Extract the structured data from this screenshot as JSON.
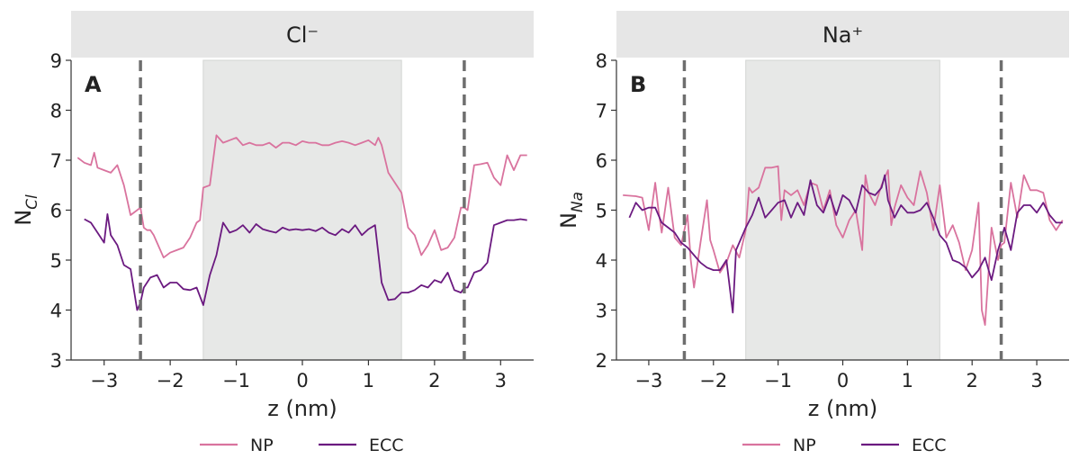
{
  "chart_data": [
    {
      "type": "line",
      "panel_label": "A",
      "title": "Cl⁻",
      "xlabel": "z (nm)",
      "ylabel_main": "N",
      "ylabel_sub": "Cl",
      "xlim": [
        -3.5,
        3.5
      ],
      "ylim": [
        3,
        9
      ],
      "xticks": [
        -3,
        -2,
        -1,
        0,
        1,
        2,
        3
      ],
      "yticks": [
        3,
        4,
        5,
        6,
        7,
        8,
        9
      ],
      "shaded_region": [
        -1.5,
        1.5
      ],
      "dashed_lines": [
        -2.45,
        2.45
      ],
      "series": [
        {
          "name": "NP",
          "color": "#d9739e",
          "x": [
            -3.4,
            -3.3,
            -3.2,
            -3.15,
            -3.1,
            -3.0,
            -2.9,
            -2.8,
            -2.7,
            -2.6,
            -2.5,
            -2.45,
            -2.4,
            -2.35,
            -2.3,
            -2.25,
            -2.2,
            -2.1,
            -2.0,
            -1.9,
            -1.8,
            -1.7,
            -1.6,
            -1.55,
            -1.5,
            -1.4,
            -1.3,
            -1.2,
            -1.1,
            -1.0,
            -0.9,
            -0.8,
            -0.7,
            -0.6,
            -0.5,
            -0.4,
            -0.3,
            -0.2,
            -0.1,
            0.0,
            0.1,
            0.2,
            0.3,
            0.4,
            0.5,
            0.6,
            0.7,
            0.8,
            0.9,
            1.0,
            1.1,
            1.15,
            1.2,
            1.3,
            1.4,
            1.5,
            1.6,
            1.7,
            1.8,
            1.9,
            2.0,
            2.1,
            2.2,
            2.3,
            2.4,
            2.45,
            2.5,
            2.6,
            2.7,
            2.8,
            2.9,
            3.0,
            3.1,
            3.2,
            3.3,
            3.4
          ],
          "values": [
            7.05,
            6.95,
            6.9,
            7.15,
            6.85,
            6.8,
            6.75,
            6.9,
            6.5,
            5.9,
            6.0,
            6.05,
            5.65,
            5.6,
            5.6,
            5.5,
            5.35,
            5.05,
            5.15,
            5.2,
            5.25,
            5.45,
            5.75,
            5.8,
            6.45,
            6.5,
            7.5,
            7.35,
            7.4,
            7.45,
            7.3,
            7.35,
            7.3,
            7.3,
            7.35,
            7.25,
            7.35,
            7.35,
            7.3,
            7.38,
            7.35,
            7.35,
            7.3,
            7.3,
            7.35,
            7.38,
            7.35,
            7.3,
            7.35,
            7.4,
            7.3,
            7.45,
            7.3,
            6.75,
            6.55,
            6.35,
            5.65,
            5.5,
            5.1,
            5.3,
            5.6,
            5.2,
            5.25,
            5.45,
            6.05,
            6.05,
            6.0,
            6.9,
            6.92,
            6.95,
            6.65,
            6.5,
            7.1,
            6.8,
            7.1,
            7.1
          ]
        },
        {
          "name": "ECC",
          "color": "#6b1a80",
          "x": [
            -3.3,
            -3.2,
            -3.1,
            -3.0,
            -2.95,
            -2.9,
            -2.8,
            -2.7,
            -2.6,
            -2.5,
            -2.45,
            -2.4,
            -2.3,
            -2.2,
            -2.1,
            -2.0,
            -1.9,
            -1.8,
            -1.7,
            -1.6,
            -1.5,
            -1.4,
            -1.3,
            -1.2,
            -1.1,
            -1.0,
            -0.9,
            -0.8,
            -0.7,
            -0.6,
            -0.5,
            -0.4,
            -0.3,
            -0.2,
            -0.1,
            0.0,
            0.1,
            0.2,
            0.3,
            0.4,
            0.5,
            0.6,
            0.7,
            0.8,
            0.9,
            1.0,
            1.1,
            1.2,
            1.3,
            1.4,
            1.5,
            1.6,
            1.7,
            1.8,
            1.9,
            2.0,
            2.1,
            2.2,
            2.3,
            2.4,
            2.45,
            2.5,
            2.6,
            2.7,
            2.8,
            2.9,
            3.0,
            3.1,
            3.2,
            3.3,
            3.4
          ],
          "values": [
            5.82,
            5.75,
            5.55,
            5.35,
            5.92,
            5.5,
            5.3,
            4.9,
            4.82,
            4.0,
            4.15,
            4.45,
            4.65,
            4.7,
            4.45,
            4.55,
            4.55,
            4.42,
            4.4,
            4.45,
            4.1,
            4.7,
            5.1,
            5.75,
            5.55,
            5.6,
            5.7,
            5.55,
            5.72,
            5.62,
            5.58,
            5.55,
            5.65,
            5.6,
            5.62,
            5.6,
            5.62,
            5.58,
            5.65,
            5.55,
            5.5,
            5.62,
            5.55,
            5.7,
            5.5,
            5.62,
            5.7,
            4.55,
            4.2,
            4.22,
            4.35,
            4.35,
            4.4,
            4.5,
            4.45,
            4.6,
            4.55,
            4.75,
            4.4,
            4.35,
            4.45,
            4.45,
            4.75,
            4.8,
            4.95,
            5.7,
            5.75,
            5.8,
            5.8,
            5.82,
            5.8
          ]
        }
      ],
      "legend": [
        "NP",
        "ECC"
      ],
      "legend_position": "bottom"
    },
    {
      "type": "line",
      "panel_label": "B",
      "title": "Na⁺",
      "xlabel": "z (nm)",
      "ylabel_main": "N",
      "ylabel_sub": "Na",
      "xlim": [
        -3.5,
        3.5
      ],
      "ylim": [
        2,
        8
      ],
      "xticks": [
        -3,
        -2,
        -1,
        0,
        1,
        2,
        3
      ],
      "yticks": [
        2,
        3,
        4,
        5,
        6,
        7,
        8
      ],
      "shaded_region": [
        -1.5,
        1.5
      ],
      "dashed_lines": [
        -2.45,
        2.45
      ],
      "series": [
        {
          "name": "NP",
          "color": "#d9739e",
          "x": [
            -3.4,
            -3.2,
            -3.1,
            -3.0,
            -2.9,
            -2.85,
            -2.8,
            -2.7,
            -2.6,
            -2.5,
            -2.4,
            -2.35,
            -2.3,
            -2.2,
            -2.1,
            -2.05,
            -2.0,
            -1.9,
            -1.8,
            -1.7,
            -1.6,
            -1.5,
            -1.45,
            -1.4,
            -1.3,
            -1.2,
            -1.1,
            -1.0,
            -0.95,
            -0.9,
            -0.8,
            -0.7,
            -0.6,
            -0.5,
            -0.4,
            -0.3,
            -0.2,
            -0.1,
            0.0,
            0.1,
            0.2,
            0.3,
            0.35,
            0.4,
            0.5,
            0.6,
            0.7,
            0.75,
            0.8,
            0.9,
            1.0,
            1.1,
            1.2,
            1.3,
            1.4,
            1.5,
            1.6,
            1.7,
            1.8,
            1.9,
            2.0,
            2.1,
            2.15,
            2.2,
            2.3,
            2.4,
            2.45,
            2.5,
            2.6,
            2.7,
            2.8,
            2.9,
            3.0,
            3.1,
            3.2,
            3.3,
            3.4
          ],
          "values": [
            5.3,
            5.28,
            5.25,
            4.6,
            5.55,
            5.0,
            4.55,
            5.45,
            4.45,
            4.3,
            4.9,
            4.0,
            3.45,
            4.35,
            5.2,
            4.4,
            4.2,
            3.75,
            3.95,
            4.3,
            4.05,
            4.6,
            5.45,
            5.35,
            5.45,
            5.85,
            5.85,
            5.88,
            4.8,
            5.4,
            5.3,
            5.4,
            5.1,
            5.55,
            5.5,
            5.0,
            5.4,
            4.7,
            4.45,
            4.8,
            5.0,
            4.2,
            5.7,
            5.35,
            5.1,
            5.5,
            5.8,
            4.7,
            5.05,
            5.5,
            5.25,
            5.1,
            5.78,
            5.35,
            4.6,
            5.5,
            4.45,
            4.7,
            4.35,
            3.8,
            4.2,
            5.15,
            3.0,
            2.7,
            4.65,
            4.0,
            4.3,
            4.35,
            5.55,
            4.85,
            5.7,
            5.4,
            5.4,
            5.35,
            4.8,
            4.6,
            4.8
          ]
        },
        {
          "name": "ECC",
          "color": "#6b1a80",
          "x": [
            -3.3,
            -3.2,
            -3.1,
            -3.0,
            -2.9,
            -2.8,
            -2.7,
            -2.6,
            -2.5,
            -2.4,
            -2.3,
            -2.2,
            -2.1,
            -2.0,
            -1.9,
            -1.8,
            -1.7,
            -1.65,
            -1.6,
            -1.5,
            -1.4,
            -1.3,
            -1.2,
            -1.1,
            -1.0,
            -0.9,
            -0.8,
            -0.7,
            -0.6,
            -0.5,
            -0.4,
            -0.3,
            -0.2,
            -0.1,
            0.0,
            0.1,
            0.2,
            0.3,
            0.4,
            0.5,
            0.6,
            0.65,
            0.7,
            0.8,
            0.9,
            1.0,
            1.1,
            1.2,
            1.3,
            1.4,
            1.5,
            1.6,
            1.7,
            1.8,
            1.9,
            2.0,
            2.1,
            2.2,
            2.3,
            2.4,
            2.45,
            2.5,
            2.6,
            2.7,
            2.8,
            2.9,
            3.0,
            3.1,
            3.2,
            3.3,
            3.4
          ],
          "values": [
            4.85,
            5.15,
            5.0,
            5.05,
            5.05,
            4.75,
            4.65,
            4.55,
            4.35,
            4.25,
            4.1,
            3.95,
            3.85,
            3.8,
            3.8,
            4.0,
            2.95,
            4.2,
            4.35,
            4.65,
            4.9,
            5.25,
            4.85,
            5.0,
            5.15,
            5.2,
            4.85,
            5.15,
            4.9,
            5.6,
            5.1,
            4.95,
            5.3,
            4.9,
            5.3,
            5.2,
            4.95,
            5.5,
            5.35,
            5.3,
            5.45,
            5.7,
            5.2,
            4.85,
            5.1,
            4.95,
            4.95,
            5.0,
            5.15,
            4.85,
            4.5,
            4.35,
            4.0,
            3.95,
            3.85,
            3.65,
            3.8,
            4.05,
            3.6,
            4.2,
            4.4,
            4.65,
            4.2,
            4.95,
            5.1,
            5.1,
            4.95,
            5.15,
            4.9,
            4.75,
            4.75
          ]
        }
      ],
      "legend": [
        "NP",
        "ECC"
      ],
      "legend_position": "bottom"
    }
  ]
}
